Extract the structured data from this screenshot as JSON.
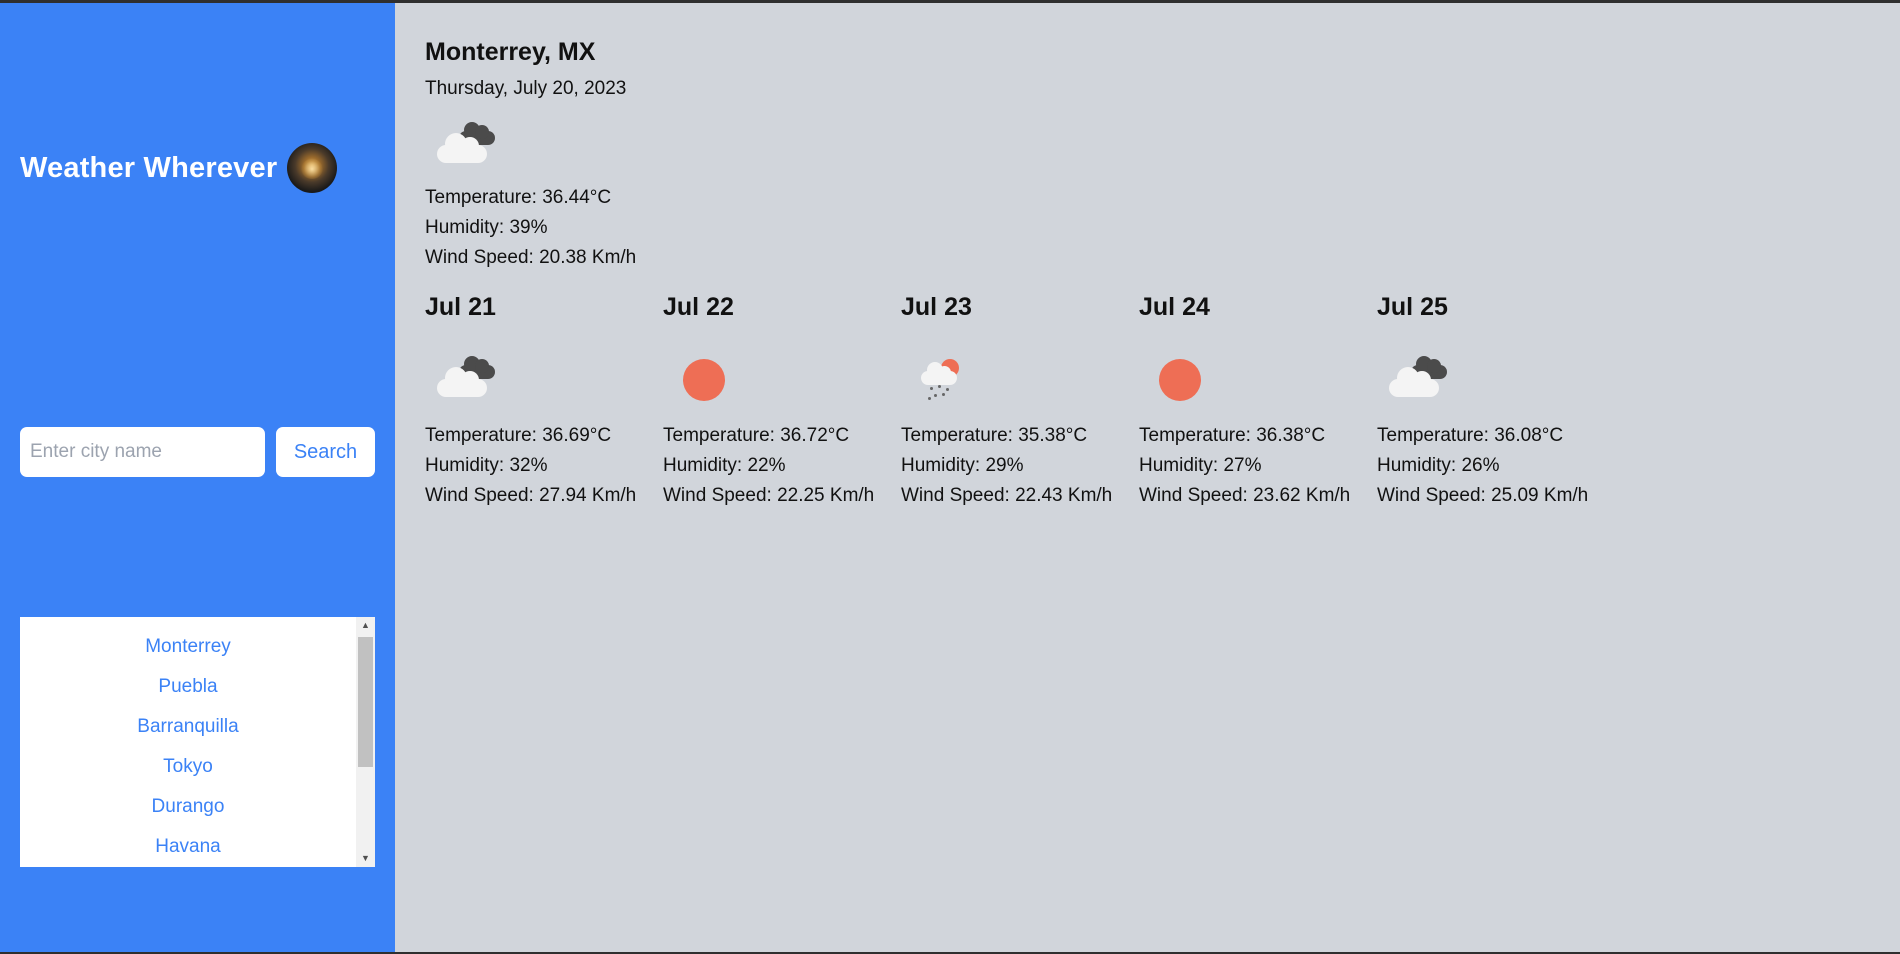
{
  "app": {
    "title": "Weather Wherever"
  },
  "search": {
    "placeholder": "Enter city name",
    "button_label": "Search"
  },
  "history": [
    "Monterrey",
    "Puebla",
    "Barranquilla",
    "Tokyo",
    "Durango",
    "Havana"
  ],
  "current": {
    "city": "Monterrey, MX",
    "date": "Thursday, July 20, 2023",
    "icon": "cloudy-icon",
    "temperature": "Temperature: 36.44°C",
    "humidity": "Humidity: 39%",
    "wind": "Wind Speed: 20.38 Km/h"
  },
  "forecast": [
    {
      "date": "Jul 21",
      "icon": "cloudy-icon",
      "temperature": "Temperature: 36.69°C",
      "humidity": "Humidity: 32%",
      "wind": "Wind Speed: 27.94 Km/h"
    },
    {
      "date": "Jul 22",
      "icon": "sun-icon",
      "temperature": "Temperature: 36.72°C",
      "humidity": "Humidity: 22%",
      "wind": "Wind Speed: 22.25 Km/h"
    },
    {
      "date": "Jul 23",
      "icon": "rain-icon",
      "temperature": "Temperature: 35.38°C",
      "humidity": "Humidity: 29%",
      "wind": "Wind Speed: 22.43 Km/h"
    },
    {
      "date": "Jul 24",
      "icon": "sun-icon",
      "temperature": "Temperature: 36.38°C",
      "humidity": "Humidity: 27%",
      "wind": "Wind Speed: 23.62 Km/h"
    },
    {
      "date": "Jul 25",
      "icon": "cloudy-icon",
      "temperature": "Temperature: 36.08°C",
      "humidity": "Humidity: 26%",
      "wind": "Wind Speed: 25.09 Km/h"
    }
  ],
  "colors": {
    "sidebar": "#3b82f6",
    "main_background": "#d1d5db",
    "link": "#3b82f6",
    "sun": "#ee6e55"
  }
}
